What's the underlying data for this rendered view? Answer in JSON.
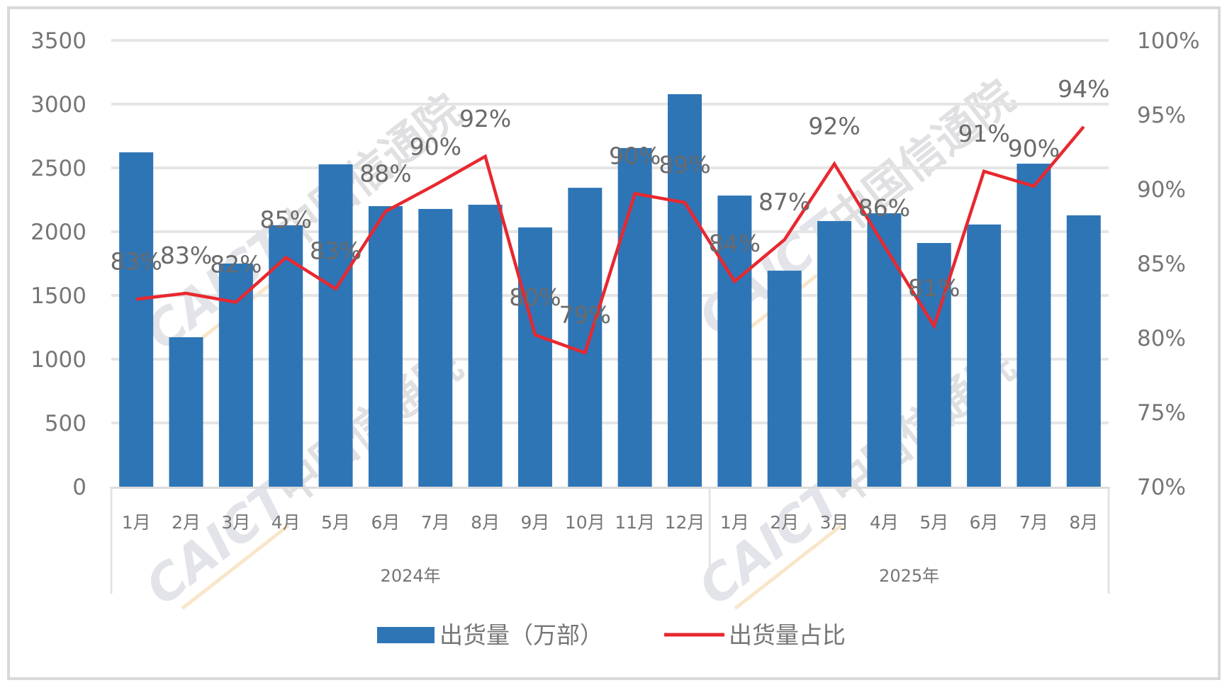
{
  "chart_data": {
    "type": "bar+line",
    "title": "",
    "categories": [
      "1月",
      "2月",
      "3月",
      "4月",
      "5月",
      "6月",
      "7月",
      "8月",
      "9月",
      "10月",
      "11月",
      "12月",
      "1月",
      "2月",
      "3月",
      "4月",
      "5月",
      "6月",
      "7月",
      "8月"
    ],
    "category_groups": [
      {
        "label": "2024年",
        "start": 0,
        "end": 11
      },
      {
        "label": "2025年",
        "start": 12,
        "end": 19
      }
    ],
    "series": [
      {
        "name": "出货量（万部）",
        "type": "bar",
        "axis": "left",
        "color": "#2e75b6",
        "values": [
          2622,
          1172,
          1750,
          2050,
          2528,
          2200,
          2178,
          2211,
          2033,
          2344,
          2656,
          3078,
          2283,
          1694,
          2083,
          2144,
          1911,
          2056,
          2533,
          2128
        ]
      },
      {
        "name": "出货量占比",
        "type": "line",
        "axis": "right",
        "color": "#e8282f",
        "values": [
          82.6,
          83.0,
          82.4,
          85.4,
          83.3,
          88.5,
          90.3,
          92.2,
          80.2,
          79.0,
          89.7,
          89.1,
          83.8,
          86.6,
          91.7,
          86.2,
          80.8,
          91.2,
          90.2,
          94.2
        ],
        "data_labels": [
          "83%",
          "83%",
          "82%",
          "85%",
          "83%",
          "88%",
          "90%",
          "92%",
          "80%",
          "79%",
          "90%",
          "89%",
          "84%",
          "87%",
          "92%",
          "86%",
          "81%",
          "91%",
          "90%",
          "94%"
        ]
      }
    ],
    "left_axis": {
      "label": "",
      "ylim": [
        0,
        3500
      ],
      "ticks": [
        "0",
        "500",
        "1000",
        "1500",
        "2000",
        "2500",
        "3000",
        "3500"
      ]
    },
    "right_axis": {
      "label": "",
      "ylim": [
        70,
        100
      ],
      "ticks": [
        "70%",
        "75%",
        "80%",
        "85%",
        "90%",
        "95%",
        "100%"
      ]
    },
    "xlabel": "",
    "grid": true,
    "legend_position": "bottom",
    "watermark": "CAICT 中国信通院"
  },
  "legend": {
    "bar_label": "出货量（万部）",
    "line_label": "出货量占比"
  },
  "colors": {
    "bar": "#2e75b6",
    "line": "#e8282f",
    "text": "#767676",
    "grid": "#e5e5e5",
    "frame": "#d9d9d9"
  },
  "watermark": {
    "latin": "CAICT",
    "chinese": "中国信通院"
  }
}
